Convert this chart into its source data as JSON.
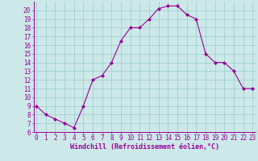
{
  "x": [
    0,
    1,
    2,
    3,
    4,
    5,
    6,
    7,
    8,
    9,
    10,
    11,
    12,
    13,
    14,
    15,
    16,
    17,
    18,
    19,
    20,
    21,
    22,
    23
  ],
  "y": [
    9,
    8,
    7.5,
    7,
    6.5,
    9,
    12,
    12.5,
    14,
    16.5,
    18,
    18,
    19,
    20.2,
    20.5,
    20.5,
    19.5,
    19,
    15,
    14,
    14,
    13,
    11,
    11
  ],
  "line_color": "#990099",
  "marker_color": "#990099",
  "bg_color": "#cce8e8",
  "grid_color": "#99cccc",
  "xlabel": "Windchill (Refroidissement éolien,°C)",
  "xlabel_color": "#990099",
  "tick_color": "#990099",
  "ylim": [
    6,
    21
  ],
  "yticks": [
    6,
    7,
    8,
    9,
    10,
    11,
    12,
    13,
    14,
    15,
    16,
    17,
    18,
    19,
    20
  ],
  "xticks": [
    0,
    1,
    2,
    3,
    4,
    5,
    6,
    7,
    8,
    9,
    10,
    11,
    12,
    13,
    14,
    15,
    16,
    17,
    18,
    19,
    20,
    21,
    22,
    23
  ],
  "axis_fontsize": 5.5,
  "xlabel_fontsize": 6.0
}
